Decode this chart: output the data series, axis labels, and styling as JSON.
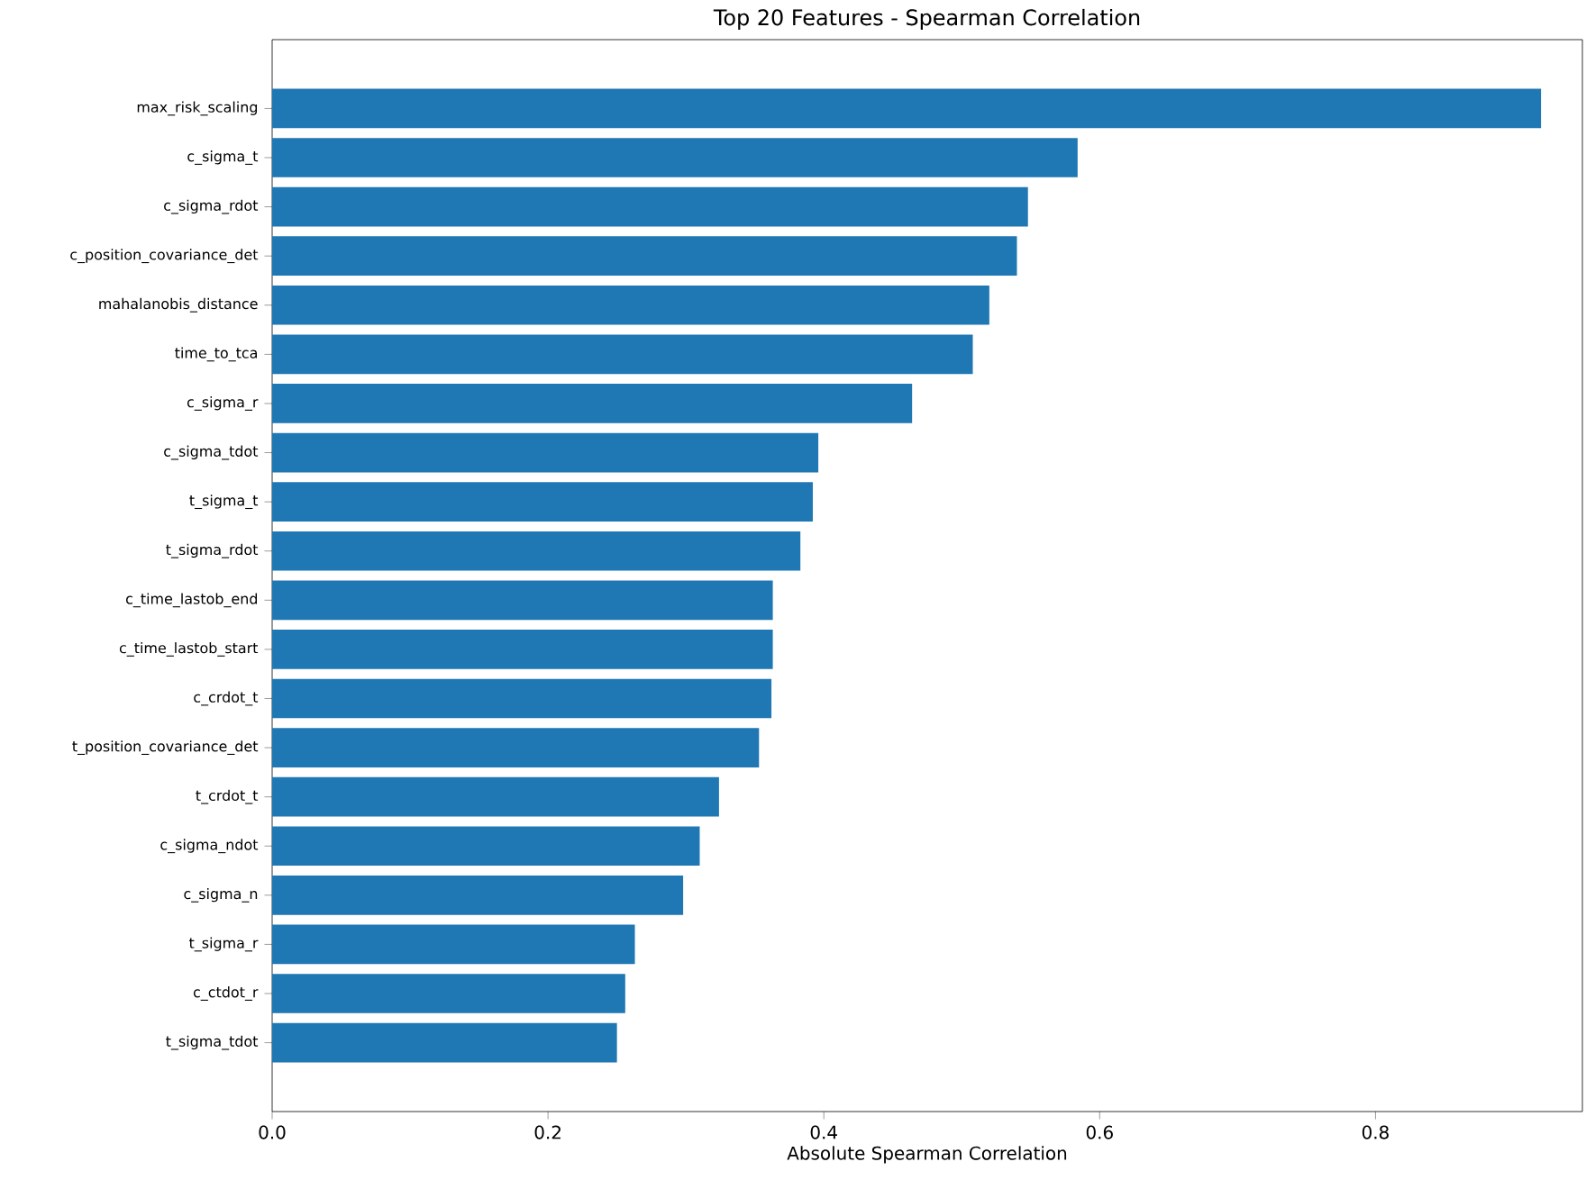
{
  "chart_data": {
    "type": "bar",
    "orientation": "horizontal",
    "title": "Top 20 Features - Spearman Correlation",
    "xlabel": "Absolute Spearman Correlation",
    "categories": [
      "max_risk_scaling",
      "c_sigma_t",
      "c_sigma_rdot",
      "c_position_covariance_det",
      "mahalanobis_distance",
      "time_to_tca",
      "c_sigma_r",
      "c_sigma_tdot",
      "t_sigma_t",
      "t_sigma_rdot",
      "c_time_lastob_end",
      "c_time_lastob_start",
      "c_crdot_t",
      "t_position_covariance_det",
      "t_crdot_t",
      "c_sigma_ndot",
      "c_sigma_n",
      "t_sigma_r",
      "c_ctdot_r",
      "t_sigma_tdot"
    ],
    "values": [
      0.92,
      0.584,
      0.548,
      0.54,
      0.52,
      0.508,
      0.464,
      0.396,
      0.392,
      0.383,
      0.363,
      0.363,
      0.362,
      0.353,
      0.324,
      0.31,
      0.298,
      0.263,
      0.256,
      0.25
    ],
    "color": "#1f77b4",
    "xlim": [
      0,
      0.95
    ],
    "xticks": [
      {
        "value": 0,
        "label": "0.0"
      },
      {
        "value": 0.2,
        "label": "0.2"
      },
      {
        "value": 0.4,
        "label": "0.4"
      },
      {
        "value": 0.6,
        "label": "0.6"
      },
      {
        "value": 0.8,
        "label": "0.8"
      }
    ]
  }
}
